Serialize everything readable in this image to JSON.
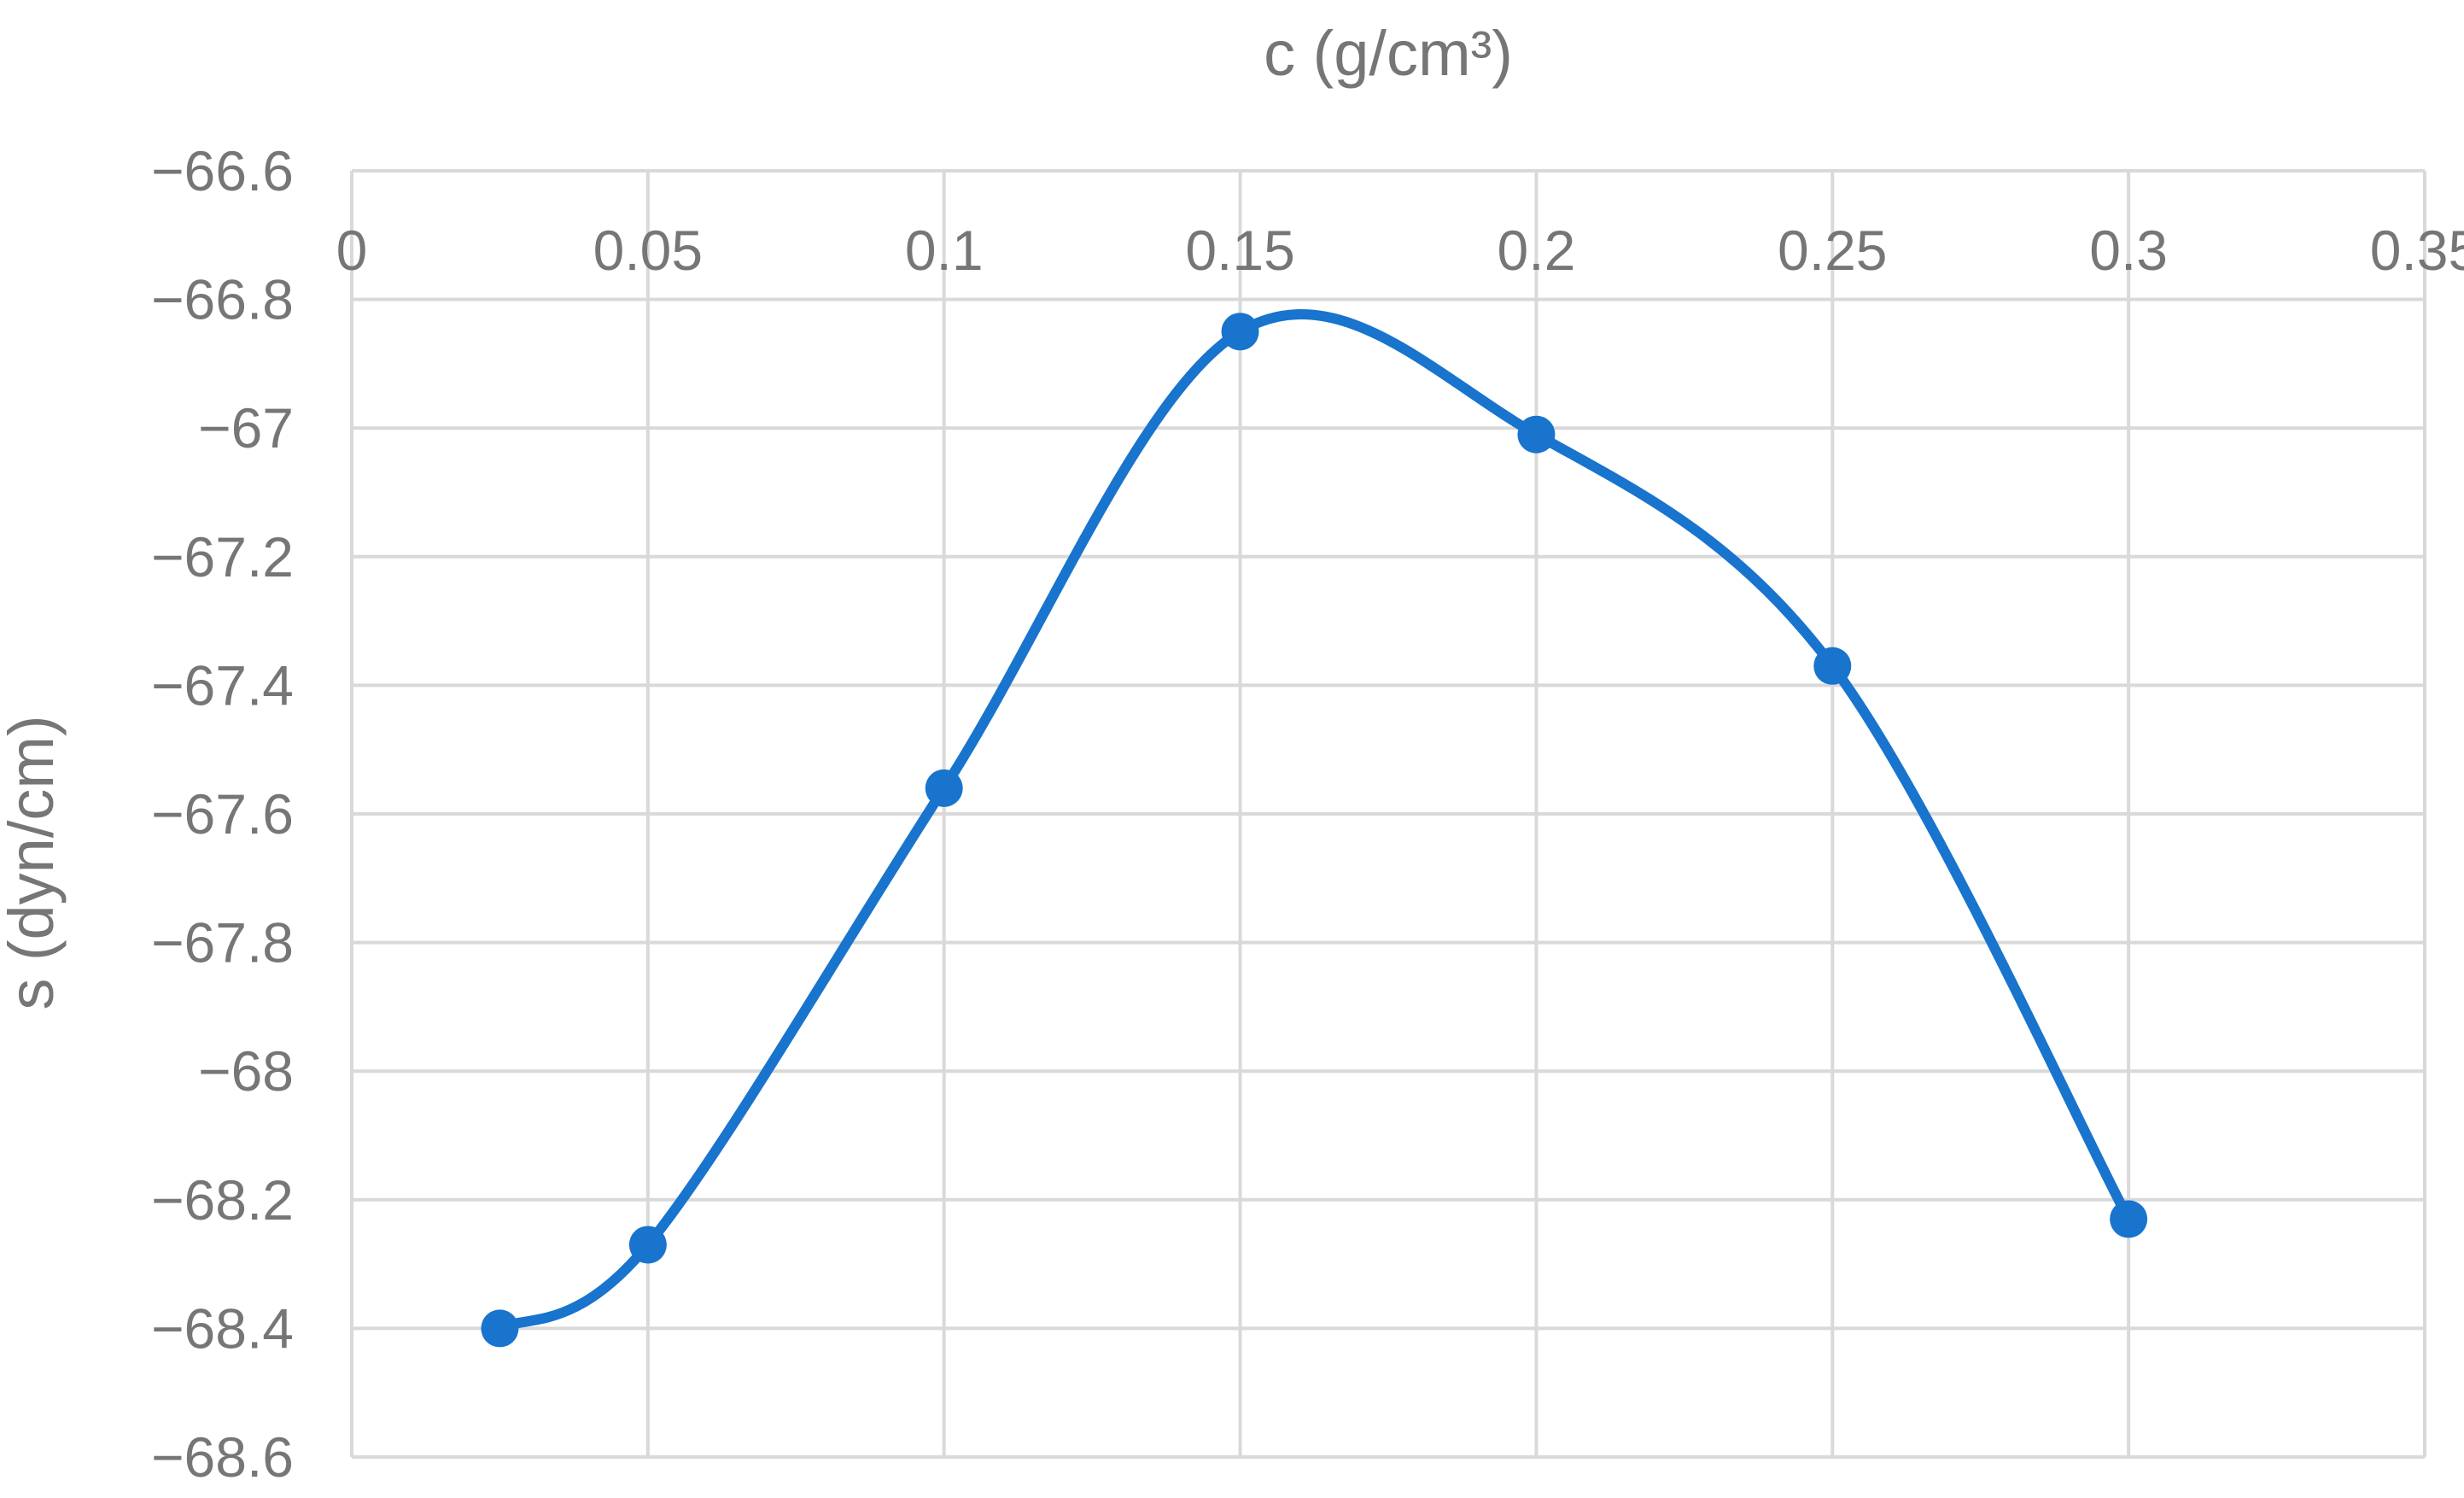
{
  "chart_data": {
    "type": "line",
    "smooth": true,
    "xlabel": "c (g/cm³)",
    "ylabel": "s (dyn/cm)",
    "xlim": [
      0,
      0.35
    ],
    "ylim": [
      -68.6,
      -66.6
    ],
    "x_ticks": [
      "0",
      "0.05",
      "0.1",
      "0.15",
      "0.2",
      "0.25",
      "0.3",
      "0.35"
    ],
    "y_ticks": [
      "−66.6",
      "−66.8",
      "−67",
      "−67.2",
      "−67.4",
      "−67.6",
      "−67.8",
      "−68",
      "−68.2",
      "−68.4",
      "−68.6"
    ],
    "x_axis_position": "top",
    "grid": true,
    "legend": false,
    "series": [
      {
        "color": "#1874CD",
        "x": [
          0.025,
          0.05,
          0.1,
          0.15,
          0.2,
          0.25,
          0.3
        ],
        "y": [
          -68.4,
          -68.27,
          -67.56,
          -66.85,
          -67.01,
          -67.37,
          -68.23
        ]
      }
    ]
  }
}
